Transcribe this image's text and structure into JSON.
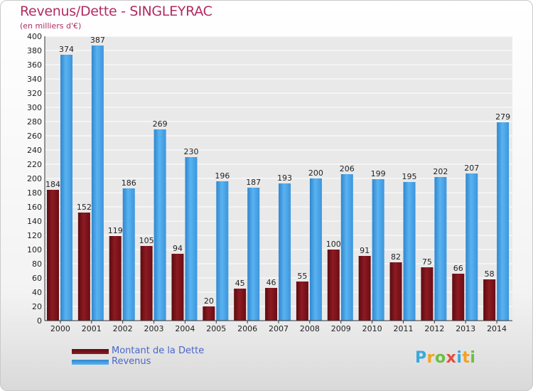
{
  "header": {
    "title": "Revenus/Dette - SINGLEYRAC",
    "subtitle": "(en milliers d'€)"
  },
  "chart_data": {
    "type": "bar",
    "categories": [
      "2000",
      "2001",
      "2002",
      "2003",
      "2004",
      "2005",
      "2006",
      "2007",
      "2008",
      "2009",
      "2010",
      "2011",
      "2012",
      "2013",
      "2014"
    ],
    "series": [
      {
        "name": "Montant de la Dette",
        "color": "#7a1018",
        "values": [
          184,
          152,
          119,
          105,
          94,
          20,
          45,
          46,
          55,
          100,
          91,
          82,
          75,
          66,
          58
        ]
      },
      {
        "name": "Revenus",
        "color": "#3e9ae2",
        "values": [
          374,
          387,
          186,
          269,
          230,
          196,
          187,
          193,
          200,
          206,
          199,
          195,
          202,
          207,
          279
        ]
      }
    ],
    "ylim": [
      0,
      400
    ],
    "ytick_step": 20,
    "grid": true,
    "legend_position": "bottom-left"
  },
  "logo": {
    "letters": [
      "P",
      "r",
      "o",
      "x",
      "i",
      "t",
      "i"
    ],
    "colors": [
      "#39a9dc",
      "#f4a21f",
      "#6cbe45",
      "#e84c3d",
      "#39a9dc",
      "#f4a21f",
      "#6cbe45"
    ]
  }
}
